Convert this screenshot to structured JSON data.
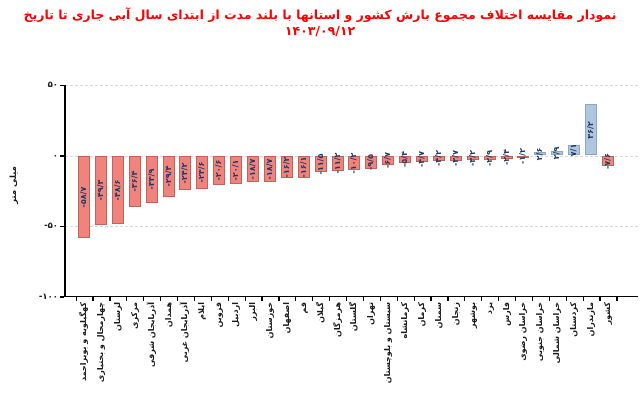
{
  "chart_data": {
    "type": "bar",
    "title": "نمودار مقایسه اختلاف مجموع بارش کشور و استانها با بلند مدت از ابتدای سال آبی جاری تا تاریخ ۱۴۰۳/۰۹/۱۲",
    "xlabel": "",
    "ylabel": "میلی متر",
    "ylim": [
      -100,
      50
    ],
    "grid": "horizontal dashed gridlines at 50, 0, -50",
    "legend": "none",
    "yticks": [
      {
        "value": 50,
        "label": "۵۰"
      },
      {
        "value": 0,
        "label": "۰"
      },
      {
        "value": -50,
        "label": "-۵۰"
      },
      {
        "value": -100,
        "label": "-۱۰۰"
      }
    ],
    "categories": [
      "کهگیلویه و بویراحمد",
      "چهارمحال و بختیاری",
      "لرستان",
      "مرکزی",
      "آذربایجان شرقی",
      "همدان",
      "آذربایجان غربی",
      "ایلام",
      "قزوین",
      "اردبیل",
      "البرز",
      "خوزستان",
      "اصفهان",
      "قم",
      "گیلان",
      "هرمزگان",
      "گلستان",
      "تهران",
      "سیستان و بلوچستان",
      "کرمانشاه",
      "کرمان",
      "سمنان",
      "زنجان",
      "بوشهر",
      "یزد",
      "فارس",
      "خراسان رضوی",
      "خراسان جنوبی",
      "خراسان شمالی",
      "کردستان",
      "مازندران",
      "کشور"
    ],
    "values": [
      -58.7,
      -49.3,
      -48.6,
      -36.4,
      -33.9,
      -29.4,
      -24.2,
      -23.6,
      -20.6,
      -20.1,
      -18.7,
      -18.7,
      -16.2,
      -16.1,
      -11.5,
      -11.2,
      -10.2,
      -9.5,
      -6.7,
      -5.4,
      -4.7,
      -4.2,
      -3.7,
      -3.2,
      -2.9,
      -2.4,
      -1.2,
      2.6,
      2.9,
      7.1,
      36.2,
      -7.6
    ],
    "value_labels": [
      "-۵۸/۷",
      "-۴۹/۳",
      "-۴۸/۶",
      "-۳۶/۴",
      "-۳۳/۹",
      "-۲۹/۴",
      "-۲۴/۲",
      "-۲۳/۶",
      "-۲۰/۶",
      "-۲۰/۱",
      "-۱۸/۷",
      "-۱۸/۷",
      "-۱۶/۲",
      "-۱۶/۱",
      "-۱۱/۵",
      "-۱۱/۲",
      "-۱۰/۲",
      "-۹/۵",
      "-۶/۷",
      "-۵/۴",
      "-۴/۷",
      "-۴/۲",
      "-۳/۷",
      "-۳/۲",
      "-۲/۹",
      "-۲/۴",
      "-۱/۲",
      "۲/۶",
      "۲/۹",
      "۷/۱",
      "۳۶/۲",
      "-۷/۶"
    ],
    "colors": {
      "negative_fill": "#F0837B",
      "negative_border": "#C06358",
      "positive_fill": "#AEC6E0",
      "positive_border": "#8CA7C0",
      "title_text": "#FF0000",
      "value_label_text": "#1F3864",
      "axis_text": "#1A1A1A",
      "gridline": "#D9D9D9"
    }
  }
}
